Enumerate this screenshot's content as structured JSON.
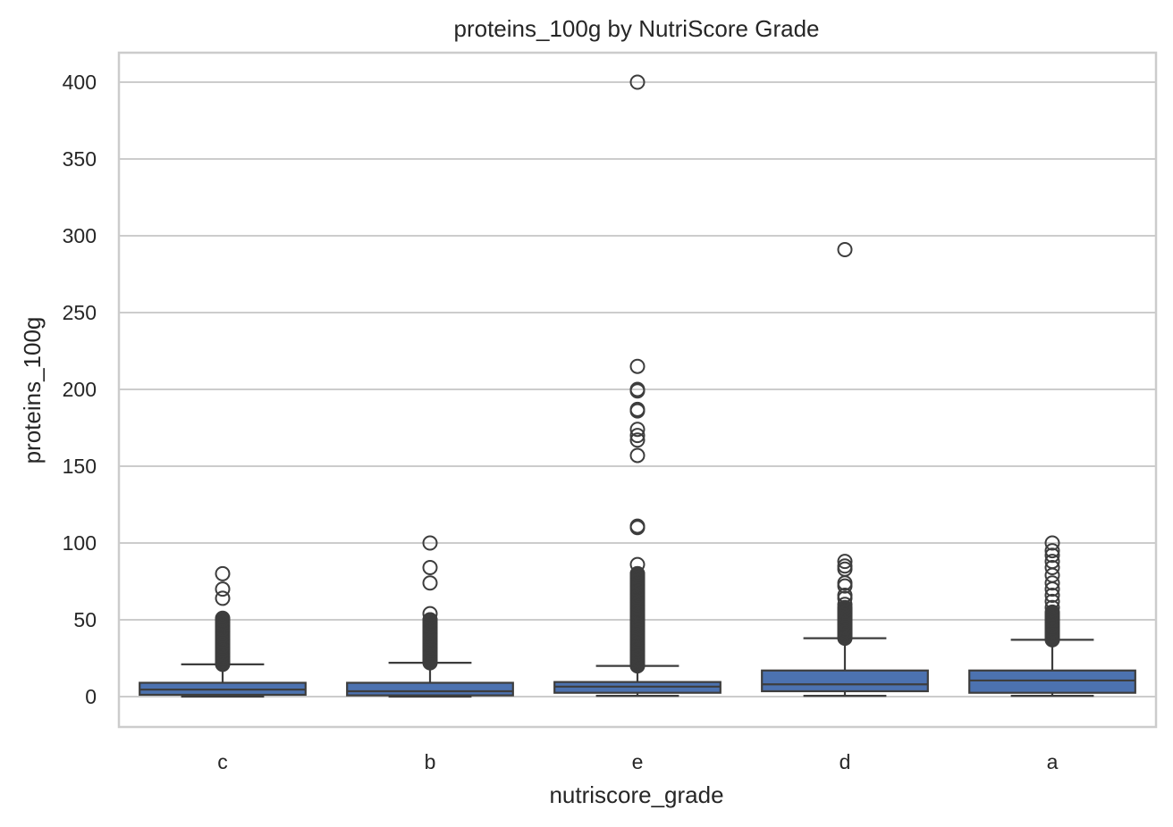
{
  "chart_data": {
    "type": "box",
    "title": "proteins_100g by NutriScore Grade",
    "xlabel": "nutriscore_grade",
    "ylabel": "proteins_100g",
    "categories": [
      "c",
      "b",
      "e",
      "d",
      "a"
    ],
    "ylim": [
      -20,
      420
    ],
    "yticks": [
      0,
      50,
      100,
      150,
      200,
      250,
      300,
      350,
      400
    ],
    "ytick_labels": [
      "0",
      "50",
      "100",
      "150",
      "200",
      "250",
      "300",
      "350",
      "400"
    ],
    "grid": true,
    "colors": {
      "box_fill": "#4c72b0",
      "line": "#3d3d3d",
      "grid": "#cccccc"
    },
    "boxes": [
      {
        "category": "c",
        "whisker_low": 0,
        "q1": 1.2,
        "median": 4.6,
        "q3": 9.0,
        "whisker_high": 21,
        "outlier_range": [
          21,
          51
        ],
        "outliers": [
          22,
          25,
          28,
          30,
          33,
          36,
          40,
          44,
          48,
          50,
          64,
          70,
          80
        ]
      },
      {
        "category": "b",
        "whisker_low": 0,
        "q1": 0.8,
        "median": 3.5,
        "q3": 9.0,
        "whisker_high": 22,
        "outlier_range": [
          22,
          50
        ],
        "outliers": [
          23,
          26,
          30,
          34,
          38,
          42,
          46,
          50,
          54,
          74,
          84,
          100
        ]
      },
      {
        "category": "e",
        "whisker_low": 0.5,
        "q1": 2.5,
        "median": 6.5,
        "q3": 9.5,
        "whisker_high": 20,
        "outlier_range": [
          20,
          80
        ],
        "outliers": [
          21,
          24,
          28,
          32,
          36,
          40,
          45,
          50,
          55,
          60,
          65,
          70,
          75,
          80,
          86,
          110,
          111,
          157,
          167,
          170,
          174,
          186,
          187,
          199,
          200,
          215,
          400
        ]
      },
      {
        "category": "d",
        "whisker_low": 0.5,
        "q1": 3.5,
        "median": 8.0,
        "q3": 17.0,
        "whisker_high": 38,
        "outlier_range": [
          38,
          58
        ],
        "outliers": [
          39,
          42,
          45,
          48,
          52,
          56,
          60,
          64,
          66,
          72,
          74,
          83,
          85,
          88,
          291
        ]
      },
      {
        "category": "a",
        "whisker_low": 0.5,
        "q1": 2.5,
        "median": 10.5,
        "q3": 17.0,
        "whisker_high": 37,
        "outlier_range": [
          37,
          55
        ],
        "outliers": [
          38,
          40,
          43,
          46,
          50,
          54,
          58,
          62,
          66,
          70,
          74,
          79,
          84,
          88,
          92,
          95,
          100
        ]
      }
    ]
  }
}
